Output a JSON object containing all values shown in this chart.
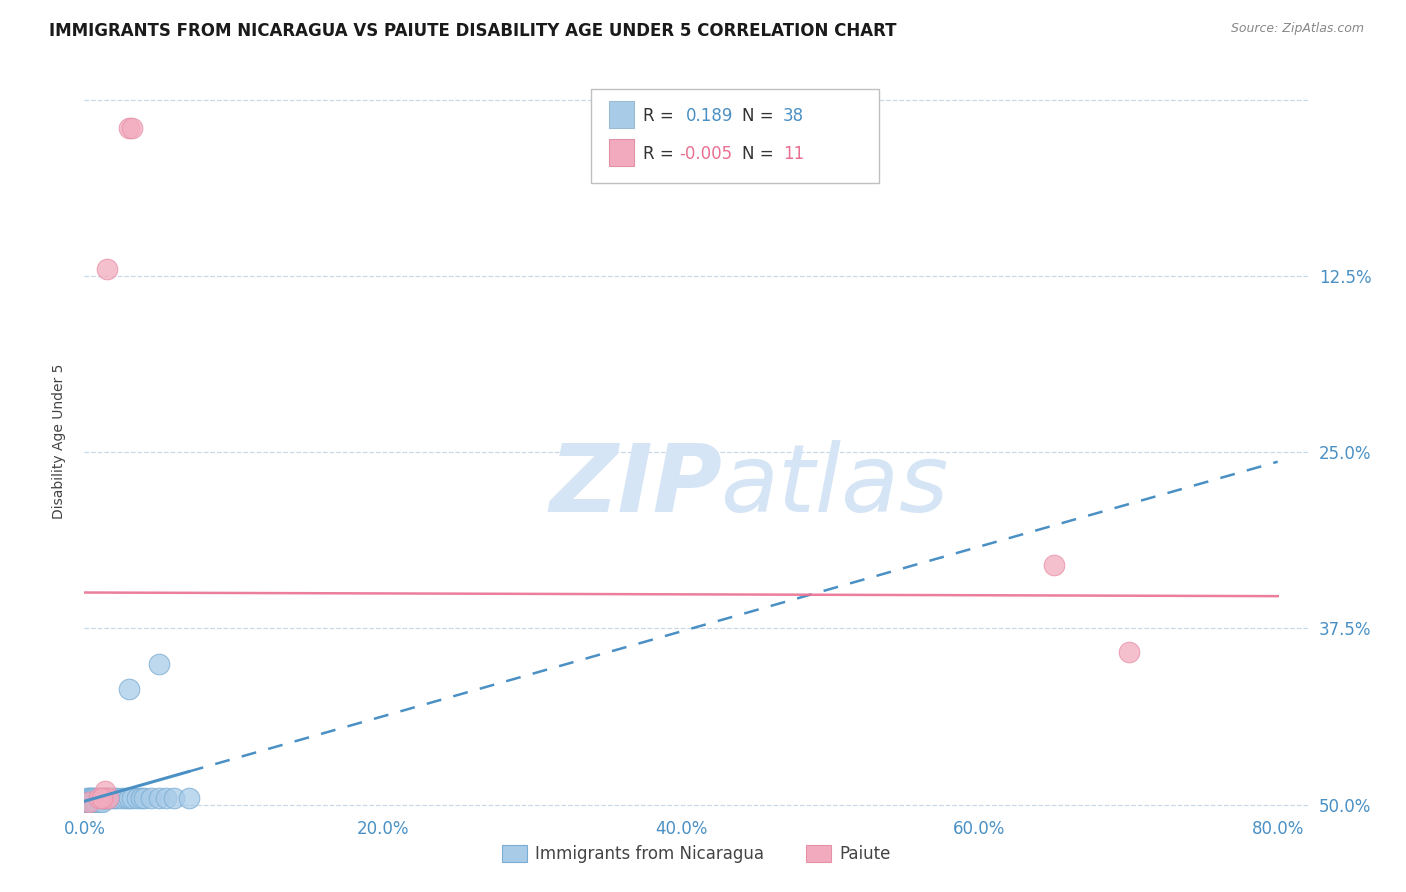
{
  "title": "IMMIGRANTS FROM NICARAGUA VS PAIUTE DISABILITY AGE UNDER 5 CORRELATION CHART",
  "source": "Source: ZipAtlas.com",
  "ylabel": "Disability Age Under 5",
  "xlim": [
    0.0,
    0.82
  ],
  "ylim": [
    -0.005,
    0.52
  ],
  "xticks": [
    0.0,
    0.2,
    0.4,
    0.6,
    0.8
  ],
  "yticks": [
    0.0,
    0.125,
    0.25,
    0.375,
    0.5
  ],
  "xticklabels": [
    "0.0%",
    "20.0%",
    "40.0%",
    "60.0%",
    "80.0%"
  ],
  "yticklabels_right": [
    "50.0%",
    "37.5%",
    "25.0%",
    "12.5%",
    ""
  ],
  "blue_R": 0.189,
  "blue_N": 38,
  "pink_R": -0.005,
  "pink_N": 11,
  "blue_color": "#A8CBE8",
  "pink_color": "#F2ABBE",
  "blue_edge_color": "#7AADD4",
  "pink_edge_color": "#E890A8",
  "blue_scatter_x": [
    0.001,
    0.002,
    0.002,
    0.003,
    0.003,
    0.004,
    0.004,
    0.005,
    0.005,
    0.006,
    0.006,
    0.007,
    0.007,
    0.008,
    0.009,
    0.01,
    0.011,
    0.012,
    0.013,
    0.015,
    0.016,
    0.018,
    0.02,
    0.022,
    0.025,
    0.028,
    0.03,
    0.032,
    0.035,
    0.038,
    0.04,
    0.045,
    0.05,
    0.055,
    0.06,
    0.07,
    0.05,
    0.03
  ],
  "blue_scatter_y": [
    0.002,
    0.002,
    0.005,
    0.002,
    0.005,
    0.002,
    0.005,
    0.002,
    0.005,
    0.002,
    0.005,
    0.002,
    0.005,
    0.002,
    0.005,
    0.002,
    0.005,
    0.002,
    0.005,
    0.005,
    0.005,
    0.005,
    0.005,
    0.005,
    0.005,
    0.005,
    0.005,
    0.005,
    0.005,
    0.005,
    0.005,
    0.005,
    0.005,
    0.005,
    0.005,
    0.005,
    0.1,
    0.082
  ],
  "pink_scatter_x": [
    0.03,
    0.032,
    0.015,
    0.013,
    0.014,
    0.016,
    0.003,
    0.65,
    0.7,
    0.01,
    0.012
  ],
  "pink_scatter_y": [
    0.48,
    0.48,
    0.38,
    0.005,
    0.01,
    0.005,
    0.002,
    0.17,
    0.108,
    0.005,
    0.005
  ],
  "blue_line_color": "#4A90C4",
  "pink_line_color": "#E87090",
  "background_color": "#FFFFFF",
  "grid_color": "#C8D8E8",
  "tick_color_blue": "#4A90C4",
  "tick_color_x": "#4A90C4",
  "title_fontsize": 12,
  "axis_label_fontsize": 10,
  "tick_fontsize": 12,
  "watermark_zip": "ZIP",
  "watermark_atlas": "atlas",
  "watermark_color": "#D5E5F5"
}
